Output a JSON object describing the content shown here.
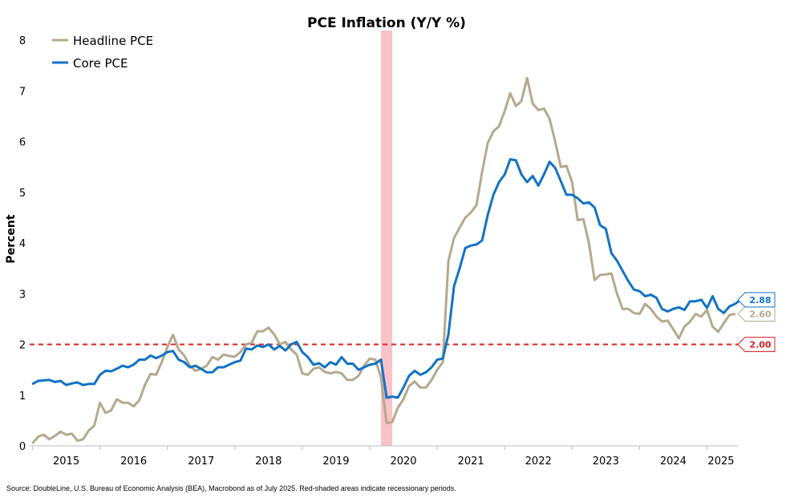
{
  "chart_data": {
    "type": "line",
    "title": "PCE Inflation (Y/Y %)",
    "xlabel": "",
    "ylabel": "Percent",
    "ylim": [
      0,
      8
    ],
    "yticks": [
      "0",
      "1",
      "2",
      "3",
      "4",
      "5",
      "6",
      "7",
      "8"
    ],
    "x_ticks": [
      "2015",
      "2016",
      "2017",
      "2018",
      "2019",
      "2020",
      "2021",
      "2022",
      "2023",
      "2024",
      "2025"
    ],
    "x_range": [
      "2015-01",
      "2025-06"
    ],
    "grid": false,
    "legend_position": "top-left",
    "recession_shading": [
      {
        "start": "2020-03",
        "end": "2020-04"
      }
    ],
    "reference_line": {
      "value": 2.0,
      "label": "2.00",
      "color": "#e02020",
      "style": "dashed"
    },
    "series": [
      {
        "name": "Headline PCE",
        "color": "#b5a98e",
        "last_value_label": "2.60",
        "monthly_start": "2015-01",
        "values": [
          0.05,
          0.18,
          0.22,
          0.13,
          0.2,
          0.28,
          0.22,
          0.24,
          0.1,
          0.13,
          0.3,
          0.4,
          0.85,
          0.65,
          0.7,
          0.92,
          0.85,
          0.85,
          0.78,
          0.9,
          1.2,
          1.42,
          1.4,
          1.65,
          1.95,
          2.19,
          1.9,
          1.78,
          1.58,
          1.48,
          1.52,
          1.58,
          1.75,
          1.7,
          1.8,
          1.77,
          1.76,
          1.85,
          2.0,
          2.03,
          2.26,
          2.26,
          2.33,
          2.2,
          2.0,
          2.05,
          1.9,
          1.8,
          1.43,
          1.4,
          1.52,
          1.55,
          1.46,
          1.43,
          1.46,
          1.43,
          1.3,
          1.3,
          1.38,
          1.58,
          1.72,
          1.7,
          1.35,
          0.45,
          0.47,
          0.75,
          0.92,
          1.18,
          1.27,
          1.15,
          1.15,
          1.3,
          1.5,
          1.65,
          3.65,
          4.1,
          4.3,
          4.5,
          4.6,
          4.75,
          5.4,
          5.97,
          6.2,
          6.3,
          6.6,
          6.95,
          6.7,
          6.8,
          7.25,
          6.75,
          6.62,
          6.65,
          6.45,
          6.0,
          5.5,
          5.52,
          5.2,
          4.45,
          4.47,
          4.0,
          3.27,
          3.37,
          3.38,
          3.4,
          3.0,
          2.7,
          2.7,
          2.62,
          2.6,
          2.8,
          2.7,
          2.55,
          2.45,
          2.47,
          2.3,
          2.12,
          2.35,
          2.45,
          2.6,
          2.55,
          2.68,
          2.35,
          2.25,
          2.42,
          2.58,
          2.6
        ],
        "end_value": 2.6
      },
      {
        "name": "Core PCE",
        "color": "#1273c4",
        "last_value_label": "2.88",
        "monthly_start": "2015-01",
        "values": [
          1.22,
          1.28,
          1.29,
          1.3,
          1.26,
          1.28,
          1.2,
          1.23,
          1.25,
          1.2,
          1.22,
          1.22,
          1.4,
          1.48,
          1.47,
          1.52,
          1.58,
          1.55,
          1.6,
          1.7,
          1.7,
          1.78,
          1.73,
          1.78,
          1.85,
          1.87,
          1.7,
          1.65,
          1.55,
          1.58,
          1.52,
          1.45,
          1.45,
          1.55,
          1.55,
          1.6,
          1.65,
          1.68,
          1.92,
          1.9,
          1.98,
          1.95,
          2.0,
          1.9,
          1.97,
          1.88,
          2.0,
          2.05,
          1.85,
          1.75,
          1.6,
          1.63,
          1.55,
          1.65,
          1.6,
          1.75,
          1.62,
          1.62,
          1.5,
          1.55,
          1.6,
          1.62,
          1.7,
          0.95,
          0.97,
          0.95,
          1.15,
          1.38,
          1.48,
          1.4,
          1.45,
          1.55,
          1.7,
          1.72,
          2.2,
          3.15,
          3.5,
          3.9,
          3.95,
          3.97,
          4.05,
          4.55,
          4.95,
          5.2,
          5.35,
          5.65,
          5.63,
          5.35,
          5.2,
          5.32,
          5.13,
          5.35,
          5.6,
          5.48,
          5.22,
          4.95,
          4.95,
          4.88,
          4.78,
          4.8,
          4.7,
          4.35,
          4.28,
          3.8,
          3.65,
          3.45,
          3.25,
          3.08,
          3.05,
          2.95,
          2.98,
          2.92,
          2.7,
          2.65,
          2.7,
          2.73,
          2.68,
          2.85,
          2.85,
          2.88,
          2.72,
          2.95,
          2.7,
          2.62,
          2.75,
          2.8,
          2.88
        ],
        "end_value": 2.88
      }
    ]
  },
  "source_note": "Source: DoubleLine, U.S. Bureau of Economic Analysis (BEA), Macrobond as of July 2025. Red-shaded areas indicate recessionary periods."
}
